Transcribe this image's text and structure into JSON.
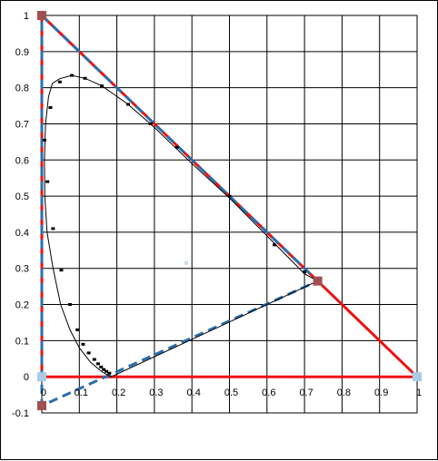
{
  "chart_data": {
    "type": "scatter",
    "title": "",
    "xlabel": "",
    "ylabel": "",
    "xlim": [
      0,
      1
    ],
    "ylim": [
      -0.1,
      1
    ],
    "grid": true,
    "legend": "none",
    "x_ticks": [
      "0",
      "0.1",
      "0.2",
      "0.3",
      "0.4",
      "0.5",
      "0.6",
      "0.7",
      "0.8",
      "0.9",
      "1"
    ],
    "y_ticks": [
      "-0.1",
      "0",
      "0.1",
      "0.2",
      "0.3",
      "0.4",
      "0.5",
      "0.6",
      "0.7",
      "0.8",
      "0.9",
      "1"
    ],
    "colors": {
      "red": "#ee1111",
      "blue": "#2a6fb0",
      "dark_blue": "#1f5f99",
      "light_blue": "#9fc8e8",
      "marker_dark": "#a05050",
      "marker_light": "#a8cce6",
      "locus": "#000000",
      "grid": "#000000"
    },
    "series": [
      {
        "style": "red-solid",
        "points": [
          [
            0,
            1
          ],
          [
            1,
            0
          ],
          [
            0,
            0
          ],
          [
            0,
            1
          ]
        ]
      },
      {
        "style": "blue-dashed",
        "points": [
          [
            0,
            1
          ],
          [
            0.735,
            0.265
          ],
          [
            0,
            -0.08
          ],
          [
            0,
            1
          ]
        ]
      },
      {
        "style": "spectral-locus",
        "points": [
          [
            0.735,
            0.265
          ],
          [
            0.7,
            0.285
          ],
          [
            0.6,
            0.39
          ],
          [
            0.5,
            0.495
          ],
          [
            0.4,
            0.59
          ],
          [
            0.3,
            0.69
          ],
          [
            0.23,
            0.754
          ],
          [
            0.16,
            0.805
          ],
          [
            0.115,
            0.826
          ],
          [
            0.08,
            0.834
          ],
          [
            0.048,
            0.825
          ],
          [
            0.028,
            0.812
          ],
          [
            0.018,
            0.775
          ],
          [
            0.01,
            0.7
          ],
          [
            0.007,
            0.6
          ],
          [
            0.008,
            0.5
          ],
          [
            0.014,
            0.4
          ],
          [
            0.03,
            0.3
          ],
          [
            0.05,
            0.2
          ],
          [
            0.075,
            0.13
          ],
          [
            0.1,
            0.08
          ],
          [
            0.13,
            0.04
          ],
          [
            0.16,
            0.014
          ],
          [
            0.175,
            0.005
          ],
          [
            0.185,
            0.0
          ],
          [
            0.735,
            0.265
          ]
        ]
      }
    ],
    "locus_markers": [
      [
        0.735,
        0.265
      ],
      [
        0.7,
        0.29
      ],
      [
        0.62,
        0.365
      ],
      [
        0.5,
        0.5
      ],
      [
        0.36,
        0.635
      ],
      [
        0.29,
        0.7
      ],
      [
        0.23,
        0.754
      ],
      [
        0.16,
        0.805
      ],
      [
        0.115,
        0.826
      ],
      [
        0.08,
        0.834
      ],
      [
        0.048,
        0.816
      ],
      [
        0.023,
        0.745
      ],
      [
        0.007,
        0.655
      ],
      [
        0.015,
        0.54
      ],
      [
        0.03,
        0.41
      ],
      [
        0.052,
        0.295
      ],
      [
        0.075,
        0.2
      ],
      [
        0.095,
        0.13
      ],
      [
        0.11,
        0.09
      ],
      [
        0.125,
        0.066
      ],
      [
        0.14,
        0.048
      ],
      [
        0.15,
        0.036
      ],
      [
        0.158,
        0.027
      ],
      [
        0.165,
        0.02
      ],
      [
        0.172,
        0.015
      ],
      [
        0.18,
        0.01
      ]
    ],
    "highlight_points": [
      {
        "x": 0,
        "y": 1,
        "color": "marker_dark"
      },
      {
        "x": 0.735,
        "y": 0.265,
        "color": "marker_dark"
      },
      {
        "x": 0,
        "y": -0.08,
        "color": "marker_dark"
      },
      {
        "x": 0,
        "y": 0,
        "color": "marker_light"
      },
      {
        "x": 1,
        "y": 0,
        "color": "marker_light"
      }
    ],
    "faint_point": {
      "x": 0.385,
      "y": 0.315
    }
  }
}
